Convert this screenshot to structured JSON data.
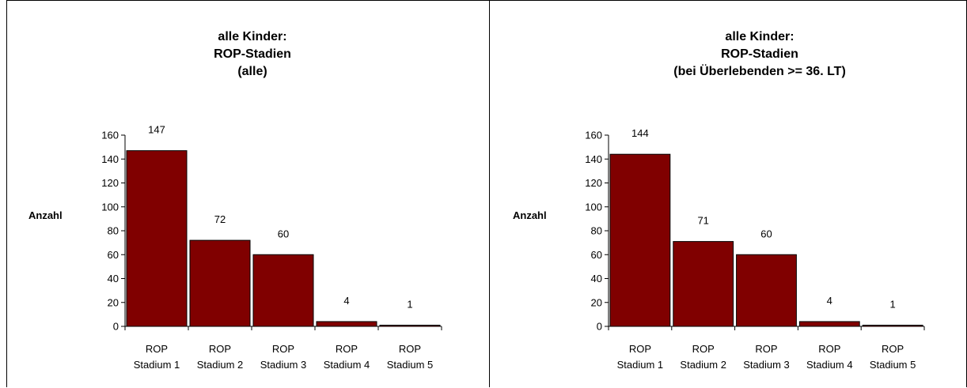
{
  "chart_data": [
    {
      "type": "bar",
      "title_lines": [
        "alle Kinder:",
        "ROP-Stadien",
        "(alle)"
      ],
      "ylabel": "Anzahl",
      "xlabel": "",
      "categories": [
        [
          "ROP",
          "Stadium 1"
        ],
        [
          "ROP",
          "Stadium 2"
        ],
        [
          "ROP",
          "Stadium 3"
        ],
        [
          "ROP",
          "Stadium 4"
        ],
        [
          "ROP",
          "Stadium 5"
        ]
      ],
      "values": [
        147,
        72,
        60,
        4,
        1
      ],
      "data_labels": [
        "147",
        "72",
        "60",
        "4",
        "1"
      ],
      "ylim": [
        0,
        160
      ],
      "yticks": [
        0,
        20,
        40,
        60,
        80,
        100,
        120,
        140,
        160
      ],
      "grid": false,
      "legend": "none",
      "bar_color": "#800000"
    },
    {
      "type": "bar",
      "title_lines": [
        "alle Kinder:",
        "ROP-Stadien",
        "(bei Überlebenden >= 36. LT)"
      ],
      "ylabel": "Anzahl",
      "xlabel": "",
      "categories": [
        [
          "ROP",
          "Stadium 1"
        ],
        [
          "ROP",
          "Stadium 2"
        ],
        [
          "ROP",
          "Stadium 3"
        ],
        [
          "ROP",
          "Stadium 4"
        ],
        [
          "ROP",
          "Stadium 5"
        ]
      ],
      "values": [
        144,
        71,
        60,
        4,
        1
      ],
      "data_labels": [
        "144",
        "71",
        "60",
        "4",
        "1"
      ],
      "ylim": [
        0,
        160
      ],
      "yticks": [
        0,
        20,
        40,
        60,
        80,
        100,
        120,
        140,
        160
      ],
      "grid": false,
      "legend": "none",
      "bar_color": "#800000"
    }
  ]
}
